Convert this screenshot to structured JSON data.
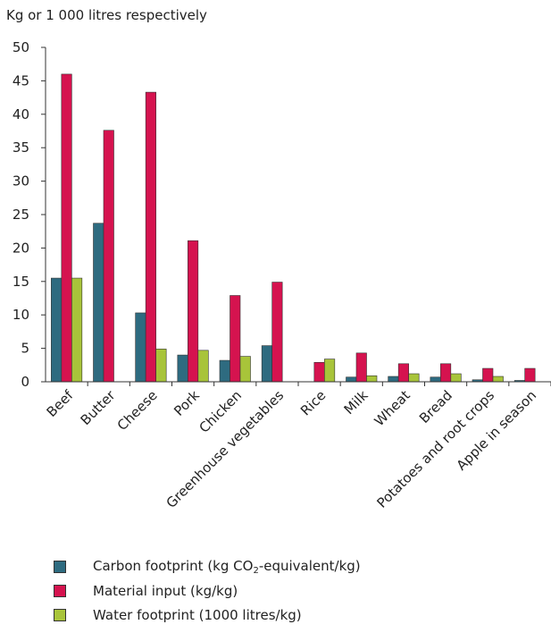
{
  "chart_data": {
    "type": "bar",
    "title": "",
    "ylabel": "Kg or 1 000 litres respectively",
    "xlabel": "",
    "ylim": [
      0,
      50
    ],
    "yticks": [
      0,
      5,
      10,
      15,
      20,
      25,
      30,
      35,
      40,
      45,
      50
    ],
    "grid": false,
    "legend_position": "bottom",
    "categories": [
      "Beef",
      "Butter",
      "Cheese",
      "Pork",
      "Chicken",
      "Greenhouse vegetables",
      "Rice",
      "Milk",
      "Wheat",
      "Bread",
      "Potatoes and root crops",
      "Apple in season"
    ],
    "series": [
      {
        "name": "Carbon footprint (kg CO2-equivalent/kg)",
        "color": "#2e6b80",
        "values": [
          15.5,
          23.7,
          10.3,
          4.0,
          3.2,
          5.4,
          0,
          0.7,
          0.8,
          0.7,
          0.3,
          0.2
        ]
      },
      {
        "name": "Material input (kg/kg)",
        "color": "#d5134f",
        "values": [
          46,
          37.6,
          43.3,
          21.1,
          12.9,
          14.9,
          2.9,
          4.3,
          2.7,
          2.7,
          2.0,
          2.0
        ]
      },
      {
        "name": "Water footprint (1000 litres/kg)",
        "color": "#a8c43a",
        "values": [
          15.5,
          0,
          4.9,
          4.7,
          3.8,
          0,
          3.4,
          0.9,
          1.2,
          1.2,
          0.8,
          0
        ]
      }
    ]
  },
  "legend": {
    "carbon_prefix": "Carbon footprint (kg CO",
    "carbon_sub": "2",
    "carbon_suffix": "-equivalent/kg)",
    "material": "Material input (kg/kg)",
    "water": "Water footprint (1000 litres/kg)"
  }
}
